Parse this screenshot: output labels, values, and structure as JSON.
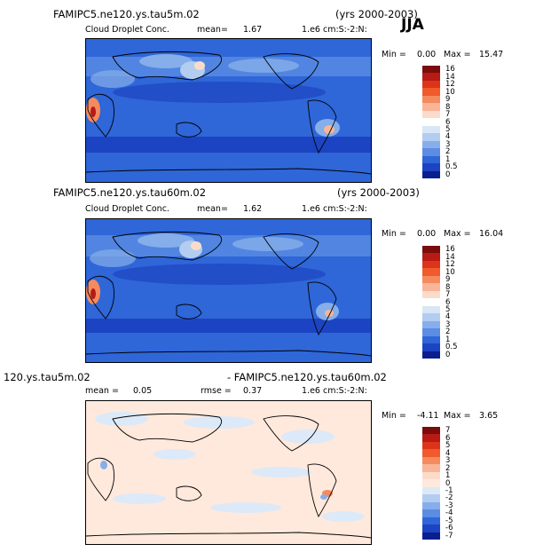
{
  "season": "JJA",
  "panels": [
    {
      "title": "FAMIPC5.ne120.ys.tau5m.02",
      "years": "(yrs 2000-2003)",
      "variable": "Cloud Droplet Conc.",
      "mean_label": "mean=",
      "mean_value": "1.67",
      "units": "1.e6 cm:S:-2:N:",
      "min_label": "Min =",
      "min_value": "0.00",
      "max_label": "Max =",
      "max_value": "15.47",
      "colorbar_labels": [
        "16",
        "14",
        "12",
        "10",
        "9",
        "8",
        "7",
        "6",
        "5",
        "4",
        "3",
        "2",
        "1",
        "0.5",
        "0"
      ],
      "colors": [
        "#7a0c0c",
        "#b71b14",
        "#dd3419",
        "#f05a2c",
        "#f58a5e",
        "#f8b597",
        "#fbdccb",
        "#ffffff",
        "#d8e6f7",
        "#b3cdf0",
        "#86aeea",
        "#5a8de3",
        "#2f66d8",
        "#1c44c2",
        "#0b1e8f"
      ]
    },
    {
      "title": "FAMIPC5.ne120.ys.tau60m.02",
      "years": "(yrs 2000-2003)",
      "variable": "Cloud Droplet Conc.",
      "mean_label": "mean=",
      "mean_value": "1.62",
      "units": "1.e6 cm:S:-2:N:",
      "min_label": "Min =",
      "min_value": "0.00",
      "max_label": "Max =",
      "max_value": "16.04",
      "colorbar_labels": [
        "16",
        "14",
        "12",
        "10",
        "9",
        "8",
        "7",
        "6",
        "5",
        "4",
        "3",
        "2",
        "1",
        "0.5",
        "0"
      ],
      "colors": [
        "#7a0c0c",
        "#b71b14",
        "#dd3419",
        "#f05a2c",
        "#f58a5e",
        "#f8b597",
        "#fbdccb",
        "#ffffff",
        "#d8e6f7",
        "#b3cdf0",
        "#86aeea",
        "#5a8de3",
        "#2f66d8",
        "#1c44c2",
        "#0b1e8f"
      ]
    },
    {
      "title_left": "120.ys.tau5m.02",
      "title_right": "- FAMIPC5.ne120.ys.tau60m.02",
      "mean_label": "mean =",
      "mean_value": "0.05",
      "rmse_label": "rmse =",
      "rmse_value": "0.37",
      "units": "1.e6 cm:S:-2:N:",
      "min_label": "Min =",
      "min_value": "-4.11",
      "max_label": "Max =",
      "max_value": "3.65",
      "colorbar_labels": [
        "7",
        "6",
        "5",
        "4",
        "3",
        "2",
        "1",
        "0",
        "-1",
        "-2",
        "-3",
        "-4",
        "-5",
        "-6",
        "-7"
      ],
      "colors": [
        "#7a0c0c",
        "#b71b14",
        "#dd3419",
        "#f05a2c",
        "#f58a5e",
        "#f8b597",
        "#fbdccb",
        "#ffe9dc",
        "#dce9f8",
        "#b3cdf0",
        "#86aeea",
        "#5a8de3",
        "#2f66d8",
        "#1c44c2",
        "#0b1e8f"
      ]
    }
  ]
}
